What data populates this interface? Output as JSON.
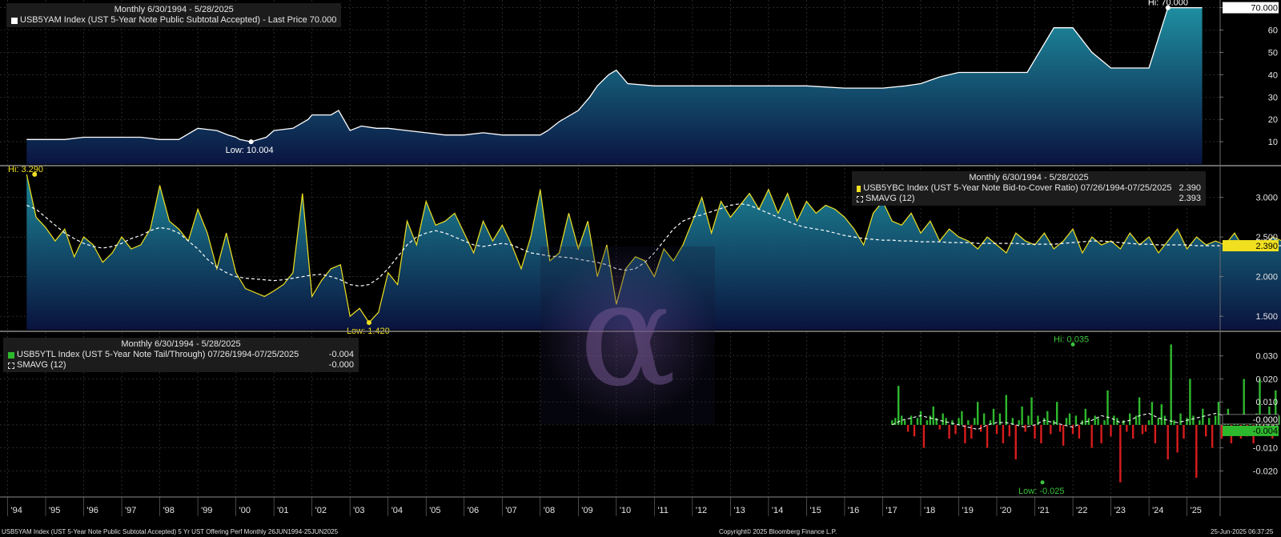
{
  "colors": {
    "background": "#000000",
    "yield_line": "#ffffff",
    "area_top": "#1e8ea0",
    "area_bottom": "#0a1440",
    "btc_line": "#f0e020",
    "sma_line": "#ffffff",
    "positive_bar": "#2eb82e",
    "negative_bar": "#d81c1c",
    "label_green": "#3cc43c",
    "label_yellow": "#f0e020"
  },
  "watermark": {
    "glyph": "α",
    "icon": "alpha-logo-icon"
  },
  "panels": {
    "top": {
      "header": "Monthly 6/30/1994 - 5/28/2025",
      "legend": "USB5YAM Index (UST 5-Year Note Public Subtotal Accepted) - Last Price 70.000",
      "hi_label": "Hi: 70.000",
      "low_label": "Low: 10.004",
      "last_value_label": "70.000"
    },
    "middle": {
      "header": "Monthly 6/30/1994 - 5/28/2025",
      "legend_series": "USB5YBC Index (UST 5-Year Note Bid-to-Cover Ratio) 07/26/1994-07/25/2025",
      "legend_series_value": "2.390",
      "legend_sma": "SMAVG (12)",
      "legend_sma_value": "2.393",
      "hi_label": "Hi: 3.290",
      "low_label": "Low: 1.420",
      "last_value_label": "2.390"
    },
    "bottom": {
      "header": "Monthly 6/30/1994 - 5/28/2025",
      "legend_series": "USB5YTL Index (UST 5-Year Note Tail/Through) 07/26/1994-07/25/2025",
      "legend_series_value": "-0.004",
      "legend_sma": "SMAVG (12)",
      "legend_sma_value": "-0.000",
      "hi_label": "Hi: 0.035",
      "low_label": "Low: -0.025",
      "last_value_label": "-0.004",
      "sma_value_label": "-0.000"
    }
  },
  "footer": {
    "left": "USB5YAM Index (UST 5-Year Note Public Subtotal Accepted) 5 Yr UST Offering Perf  Monthly 26JUN1994-25JUN2025",
    "center": "Copyright© 2025 Bloomberg Finance L.P.",
    "right": "25-Jun-2025 06:37:25"
  },
  "chart_data": [
    {
      "type": "area",
      "title": "USB5YAM Index (UST 5-Year Note Public Subtotal Accepted)",
      "subtitle": "Monthly 6/30/1994 - 5/28/2025",
      "ylim": [
        0,
        72
      ],
      "yticks": [
        10,
        20,
        30,
        40,
        50,
        60,
        70
      ],
      "grid": true,
      "x": [
        1994.5,
        1995.5,
        1996.0,
        1996.5,
        1997.5,
        1998.0,
        1998.5,
        1999.0,
        1999.5,
        1999.8,
        2000.0,
        2000.1,
        2000.4,
        2000.8,
        2001.0,
        2001.5,
        2001.9,
        2002.0,
        2002.5,
        2002.7,
        2003.0,
        2003.3,
        2003.7,
        2004.0,
        2004.5,
        2005.0,
        2005.5,
        2006.0,
        2006.5,
        2007.0,
        2007.5,
        2008.0,
        2008.2,
        2008.5,
        2009.0,
        2009.3,
        2009.5,
        2009.8,
        2010.0,
        2010.3,
        2011.0,
        2012.0,
        2013.0,
        2014.0,
        2015.0,
        2016.0,
        2016.5,
        2017.0,
        2017.6,
        2018.0,
        2018.5,
        2019.0,
        2019.5,
        2020.0,
        2020.8,
        2021.5,
        2022.0,
        2022.5,
        2023.0,
        2023.5,
        2024.0,
        2024.5,
        2025.0,
        2025.4
      ],
      "values": [
        11,
        11,
        12,
        12,
        12,
        11,
        11,
        16,
        15,
        13,
        12,
        11,
        10.004,
        12,
        15,
        16,
        20,
        22,
        22,
        24,
        15,
        17,
        16,
        16,
        15,
        14,
        13,
        13,
        14,
        13,
        13,
        13,
        15,
        19,
        24,
        30,
        35,
        40,
        42,
        36,
        35,
        35,
        35,
        35,
        35,
        34,
        34,
        34,
        35,
        36,
        39,
        41,
        41,
        41,
        41,
        61,
        61,
        50,
        43,
        43,
        43,
        70,
        70,
        70
      ],
      "hi": {
        "x": 2024.5,
        "y": 70.0
      },
      "low": {
        "x": 2000.4,
        "y": 10.004
      }
    },
    {
      "type": "line",
      "title": "USB5YBC Index (UST 5-Year Note Bid-to-Cover Ratio)",
      "subtitle": "Monthly 6/30/1994 - 5/28/2025",
      "ylim": [
        1.33,
        3.37
      ],
      "yticks": [
        1.5,
        2.0,
        2.5,
        3.0
      ],
      "grid": true,
      "series": [
        {
          "name": "USB5YBC Index (UST 5-Year Note Bid-to-Cover Ratio) 07/26/1994-07/25/2025",
          "x_start": 1994.5,
          "x_step": 0.25,
          "values": [
            3.29,
            2.75,
            2.62,
            2.45,
            2.6,
            2.25,
            2.5,
            2.4,
            2.18,
            2.3,
            2.5,
            2.35,
            2.4,
            2.6,
            3.15,
            2.7,
            2.6,
            2.45,
            2.85,
            2.55,
            2.1,
            2.55,
            2.05,
            1.85,
            1.8,
            1.75,
            1.82,
            1.9,
            2.05,
            3.05,
            1.75,
            1.95,
            2.1,
            2.15,
            1.5,
            1.6,
            1.42,
            1.55,
            2.05,
            1.9,
            2.7,
            2.4,
            2.95,
            2.65,
            2.7,
            2.8,
            2.55,
            2.3,
            2.7,
            2.45,
            2.65,
            2.4,
            2.1,
            2.5,
            3.1,
            2.2,
            2.3,
            2.8,
            2.35,
            2.7,
            2.0,
            2.4,
            1.65,
            2.1,
            2.25,
            2.2,
            2.0,
            2.35,
            2.2,
            2.4,
            2.7,
            3.0,
            2.55,
            2.95,
            2.75,
            2.9,
            3.05,
            2.85,
            3.1,
            2.8,
            3.05,
            2.7,
            2.95,
            2.8,
            2.9,
            2.85,
            2.75,
            2.6,
            2.4,
            2.8,
            2.95,
            2.7,
            2.65,
            2.8,
            2.55,
            2.7,
            2.45,
            2.6,
            2.5,
            2.45,
            2.35,
            2.5,
            2.4,
            2.3,
            2.55,
            2.45,
            2.4,
            2.55,
            2.35,
            2.45,
            2.6,
            2.3,
            2.5,
            2.4,
            2.45,
            2.35,
            2.55,
            2.4,
            2.5,
            2.3,
            2.45,
            2.6,
            2.35,
            2.5,
            2.4,
            2.45,
            2.4,
            2.55,
            2.35,
            2.45,
            2.4,
            2.5,
            2.45,
            2.4,
            2.35,
            2.45,
            2.4,
            2.39
          ]
        },
        {
          "name": "SMAVG (12)",
          "x_start": 1994.5,
          "x_step": 0.25,
          "values": [
            2.9,
            2.85,
            2.75,
            2.65,
            2.55,
            2.48,
            2.42,
            2.38,
            2.36,
            2.38,
            2.42,
            2.48,
            2.52,
            2.58,
            2.62,
            2.6,
            2.55,
            2.45,
            2.35,
            2.22,
            2.12,
            2.05,
            2.0,
            1.98,
            1.97,
            1.96,
            1.95,
            1.96,
            1.98,
            2.0,
            2.02,
            2.03,
            2.0,
            1.96,
            1.9,
            1.88,
            1.9,
            1.98,
            2.1,
            2.25,
            2.4,
            2.5,
            2.55,
            2.58,
            2.55,
            2.5,
            2.45,
            2.4,
            2.38,
            2.4,
            2.42,
            2.4,
            2.35,
            2.3,
            2.28,
            2.26,
            2.25,
            2.24,
            2.22,
            2.2,
            2.18,
            2.15,
            2.1,
            2.08,
            2.1,
            2.18,
            2.3,
            2.45,
            2.6,
            2.7,
            2.75,
            2.78,
            2.82,
            2.86,
            2.9,
            2.92,
            2.9,
            2.85,
            2.8,
            2.75,
            2.7,
            2.65,
            2.62,
            2.6,
            2.58,
            2.55,
            2.52,
            2.5,
            2.48,
            2.47,
            2.46,
            2.46,
            2.45,
            2.45,
            2.44,
            2.44,
            2.44,
            2.43,
            2.43,
            2.43,
            2.42,
            2.42,
            2.42,
            2.42,
            2.42,
            2.41,
            2.41,
            2.41,
            2.41,
            2.42,
            2.43,
            2.44,
            2.45,
            2.45,
            2.44,
            2.43,
            2.42,
            2.41,
            2.41,
            2.4,
            2.4,
            2.4,
            2.4,
            2.39,
            2.39,
            2.39,
            2.39,
            2.39,
            2.39,
            2.39,
            2.39,
            2.39,
            2.39,
            2.39,
            2.39,
            2.393
          ]
        }
      ],
      "hi": {
        "x": 1994.5,
        "y": 3.29
      },
      "low": {
        "x": 2003.5,
        "y": 1.42
      }
    },
    {
      "type": "bar",
      "title": "USB5YTL Index (UST 5-Year Note Tail/Through)",
      "subtitle": "Monthly 6/30/1994 - 5/28/2025",
      "ylim": [
        -0.031,
        0.04
      ],
      "yticks": [
        -0.02,
        -0.01,
        0.0,
        0.01,
        0.02,
        0.03
      ],
      "grid": true,
      "series": [
        {
          "name": "USB5YTL Index (UST 5-Year Note Tail/Through) 07/26/1994-07/25/2025",
          "x_start": 2017.25,
          "x_step": 0.0833,
          "values": [
            0.002,
            0.003,
            0.017,
            0.004,
            0.002,
            -0.003,
            0.004,
            -0.005,
            0.003,
            0.006,
            -0.01,
            0.002,
            0.004,
            0.008,
            0.003,
            -0.002,
            0.005,
            0.003,
            -0.006,
            0.002,
            -0.004,
            0.003,
            0.006,
            -0.008,
            0.002,
            -0.006,
            0.003,
            0.01,
            -0.003,
            0.005,
            -0.01,
            0.002,
            0.007,
            -0.004,
            0.005,
            -0.008,
            0.013,
            -0.005,
            0.003,
            -0.015,
            0.002,
            0.008,
            -0.003,
            0.004,
            0.012,
            -0.006,
            0.004,
            -0.008,
            0.003,
            0.006,
            -0.004,
            0.002,
            0.01,
            -0.003,
            -0.009,
            0.003,
            0.005,
            -0.004,
            0.004,
            -0.006,
            0.002,
            0.007,
            0.003,
            -0.01,
            0.004,
            0.003,
            -0.008,
            0.002,
            0.015,
            -0.005,
            0.004,
            0.003,
            -0.025,
            0.002,
            -0.003,
            0.005,
            -0.006,
            0.004,
            0.012,
            -0.004,
            -0.003,
            0.002,
            0.01,
            -0.008,
            0.003,
            0.009,
            0.004,
            -0.015,
            0.035,
            0.002,
            -0.012,
            0.005,
            -0.006,
            0.003,
            0.02,
            0.004,
            -0.023,
            0.002,
            0.007,
            -0.005,
            0.003,
            -0.01,
            0.004,
            0.01,
            -0.006,
            0.003,
            0.007,
            -0.008,
            0.002,
            0.004,
            -0.006,
            0.02,
            -0.005,
            0.003,
            -0.008,
            0.005,
            0.02,
            -0.004,
            0.003,
            0.008,
            -0.006,
            0.015,
            0.004,
            -0.003,
            0.006,
            -0.008,
            0.003,
            0.016,
            -0.005,
            0.004,
            -0.01,
            0.003,
            -0.004
          ]
        },
        {
          "name": "SMAVG (12)",
          "x_start": 2017.25,
          "x_step": 0.25,
          "values": [
            0.0,
            0.002,
            0.003,
            0.004,
            0.003,
            0.002,
            0.001,
            0.0,
            -0.001,
            -0.002,
            0.0,
            0.001,
            0.001,
            0.0,
            -0.001,
            0.0,
            0.002,
            0.001,
            0.0,
            -0.001,
            0.001,
            0.002,
            0.004,
            0.003,
            0.001,
            0.002,
            0.004,
            0.005,
            0.003,
            0.002,
            0.001,
            0.002,
            0.003,
            0.004,
            0.005,
            0.004,
            0.002,
            0.0
          ]
        }
      ],
      "hi": {
        "x": 2022.0,
        "y": 0.035
      },
      "low": {
        "x": 2021.2,
        "y": -0.025
      }
    }
  ],
  "x_axis": {
    "ticks": [
      "'94",
      "'95",
      "'96",
      "'97",
      "'98",
      "'99",
      "'00",
      "'01",
      "'02",
      "'03",
      "'04",
      "'05",
      "'06",
      "'07",
      "'08",
      "'09",
      "'10",
      "'11",
      "'12",
      "'13",
      "'14",
      "'15",
      "'16",
      "'17",
      "'18",
      "'19",
      "'20",
      "'21",
      "'22",
      "'23",
      "'24",
      "'25"
    ],
    "tick_years": [
      1994,
      1995,
      1996,
      1997,
      1998,
      1999,
      2000,
      2001,
      2002,
      2003,
      2004,
      2005,
      2006,
      2007,
      2008,
      2009,
      2010,
      2011,
      2012,
      2013,
      2014,
      2015,
      2016,
      2017,
      2018,
      2019,
      2020,
      2021,
      2022,
      2023,
      2024,
      2025
    ],
    "range": [
      1993.8,
      2025.85
    ]
  }
}
